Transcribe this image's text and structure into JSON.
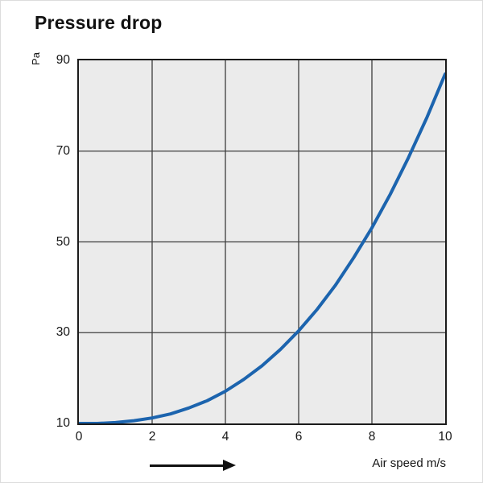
{
  "header": {
    "title": "Pressure drop"
  },
  "axes": {
    "y_unit": "Pa",
    "x_label": "Air speed m/s"
  },
  "annotations": {
    "direction_arrow": "right"
  },
  "colors": {
    "curve": "#1c64ae",
    "plot_bg": "#ebebeb",
    "grid": "#3c3c3c",
    "frame": "#1b1b1b",
    "text": "#161616",
    "arrow": "#101010"
  },
  "chart_data": {
    "type": "line",
    "title": "Pressure drop",
    "xlabel": "Air speed m/s",
    "ylabel": "Pa",
    "xlim": [
      0,
      10
    ],
    "ylim": [
      10,
      90
    ],
    "x_ticks": [
      0,
      2,
      4,
      6,
      8,
      10
    ],
    "y_ticks": [
      10,
      30,
      50,
      70,
      90
    ],
    "grid": true,
    "legend": false,
    "series": [
      {
        "name": "Pressure drop",
        "color": "#1c64ae",
        "x": [
          0,
          0.5,
          1,
          1.5,
          2,
          2.5,
          3,
          3.5,
          4,
          4.5,
          5,
          5.5,
          6,
          6.5,
          7,
          7.5,
          8,
          8.5,
          9,
          9.5,
          10
        ],
        "y": [
          10,
          10.0,
          10.2,
          10.6,
          11.2,
          12.1,
          13.4,
          15.0,
          17.1,
          19.7,
          22.7,
          26.3,
          30.4,
          35.1,
          40.4,
          46.5,
          53.1,
          60.5,
          68.6,
          77.4,
          87.0
        ]
      }
    ]
  }
}
